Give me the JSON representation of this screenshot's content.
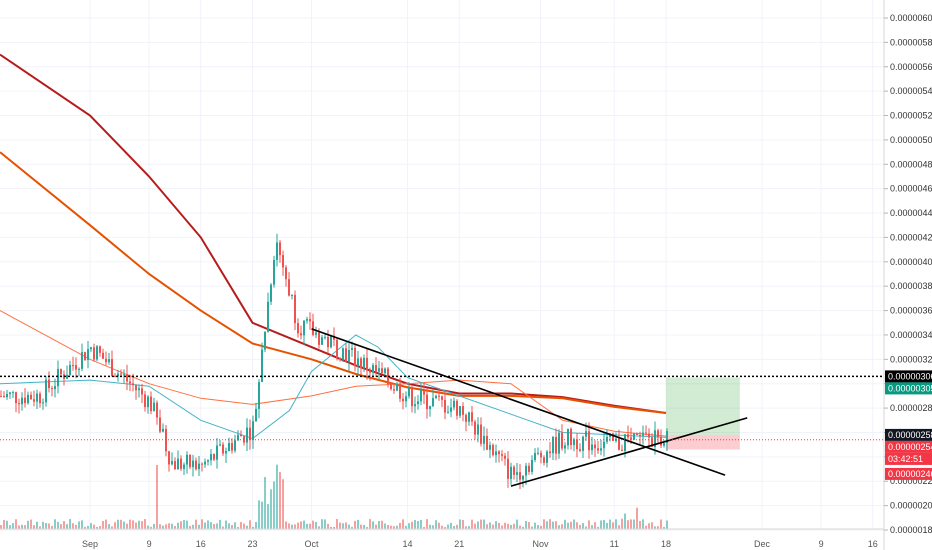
{
  "chart_data": {
    "type": "candlestick",
    "yticks": [
      "0.00000180",
      "0.00000200",
      "0.00000220",
      "0.00000240",
      "0.00000260",
      "0.00000280",
      "0.00000300",
      "0.00000320",
      "0.00000340",
      "0.00000360",
      "0.00000380",
      "0.00000400",
      "0.00000420",
      "0.00000440",
      "0.00000460",
      "0.00000480",
      "0.00000500",
      "0.00000520",
      "0.00000540",
      "0.00000560",
      "0.00000580",
      "0.00000600"
    ],
    "ylim": [
      1.8e-06,
      6e-06
    ],
    "xticks": [
      "Sep",
      "9",
      "16",
      "23",
      "Oct",
      "14",
      "21",
      "Nov",
      "11",
      "18",
      "Dec",
      "9",
      "16"
    ],
    "grid": true,
    "price_tags": [
      {
        "id": "level-high",
        "label": "0.00000306",
        "value": 3.06e-06,
        "color": "#000000"
      },
      {
        "id": "target",
        "label": "0.00000305",
        "value": 3.05e-06,
        "color": "#089981"
      },
      {
        "id": "last",
        "label": "0.00000258",
        "value": 2.58e-06,
        "color": "#131722"
      },
      {
        "id": "current",
        "label": "0.00000254",
        "value": 2.54e-06,
        "color": "#f23645"
      },
      {
        "id": "countdown",
        "label": "03:42:51",
        "value": 2.51e-06,
        "color": "#f23645"
      },
      {
        "id": "stop",
        "label": "0.00000246",
        "value": 2.46e-06,
        "color": "#f23645"
      }
    ],
    "series": [
      {
        "kind": "ma",
        "color": "#b71c1c",
        "points": [
          [
            "Aug 25",
            5.7e-06
          ],
          [
            "Sep 1",
            5.2e-06
          ],
          [
            "Sep 9",
            4.7e-06
          ],
          [
            "Sep 16",
            4.2e-06
          ],
          [
            "Sep 23",
            3.5e-06
          ],
          [
            "Oct 1",
            3.3e-06
          ],
          [
            "Oct 7",
            3.15e-06
          ],
          [
            "Oct 14",
            3e-06
          ],
          [
            "Oct 21",
            2.92e-06
          ],
          [
            "Oct 28",
            2.92e-06
          ],
          [
            "Nov 4",
            2.89e-06
          ],
          [
            "Nov 11",
            2.82e-06
          ],
          [
            "Nov 18",
            2.76e-06
          ]
        ]
      },
      {
        "kind": "ma",
        "color": "#e65100",
        "points": [
          [
            "Aug 25",
            4.9e-06
          ],
          [
            "Sep 1",
            4.3e-06
          ],
          [
            "Sep 9",
            3.9e-06
          ],
          [
            "Sep 16",
            3.6e-06
          ],
          [
            "Sep 23",
            3.33e-06
          ],
          [
            "Oct 1",
            3.2e-06
          ],
          [
            "Oct 7",
            3.08e-06
          ],
          [
            "Oct 14",
            2.97e-06
          ],
          [
            "Oct 21",
            2.9e-06
          ],
          [
            "Oct 28",
            2.9e-06
          ],
          [
            "Nov 4",
            2.88e-06
          ],
          [
            "Nov 11",
            2.81e-06
          ],
          [
            "Nov 18",
            2.76e-06
          ]
        ]
      },
      {
        "kind": "ma",
        "color": "#ff7043",
        "points": [
          [
            "Aug 25",
            3.6e-06
          ],
          [
            "Sep 1",
            3.2e-06
          ],
          [
            "Sep 9",
            3e-06
          ],
          [
            "Sep 16",
            2.88e-06
          ],
          [
            "Sep 23",
            2.83e-06
          ],
          [
            "Oct 1",
            2.9e-06
          ],
          [
            "Oct 7",
            2.98e-06
          ],
          [
            "Oct 14",
            3e-06
          ],
          [
            "Oct 21",
            3.03e-06
          ],
          [
            "Oct 28",
            3e-06
          ],
          [
            "Nov 4",
            2.7e-06
          ],
          [
            "Nov 11",
            2.61e-06
          ],
          [
            "Nov 18",
            2.57e-06
          ]
        ]
      },
      {
        "kind": "ma",
        "color": "#46b3c8",
        "points": [
          [
            "Aug 25",
            3e-06
          ],
          [
            "Sep 1",
            3.03e-06
          ],
          [
            "Sep 9",
            2.98e-06
          ],
          [
            "Sep 16",
            2.7e-06
          ],
          [
            "Sep 23",
            2.55e-06
          ],
          [
            "Sep 28",
            2.78e-06
          ],
          [
            "Oct 1",
            3.1e-06
          ],
          [
            "Oct 7",
            3.4e-06
          ],
          [
            "Oct 10",
            3.3e-06
          ],
          [
            "Oct 14",
            3.05e-06
          ],
          [
            "Oct 21",
            2.9e-06
          ],
          [
            "Oct 28",
            2.75e-06
          ],
          [
            "Nov 4",
            2.6e-06
          ],
          [
            "Nov 11",
            2.58e-06
          ],
          [
            "Nov 18",
            2.56e-06
          ]
        ]
      }
    ],
    "trendlines": [
      {
        "from": [
          "Oct 1",
          3.45e-06
        ],
        "to": [
          "Nov 26",
          2.25e-06
        ],
        "color": "#000000"
      },
      {
        "from": [
          "Oct 28",
          2.16e-06
        ],
        "to": [
          "Nov 29",
          2.72e-06
        ],
        "color": "#000000"
      }
    ],
    "position": {
      "entry": 2.58e-06,
      "target": 3.05e-06,
      "stop": 2.46e-06,
      "from": "Nov 18",
      "to": "Nov 28"
    },
    "candles_summary": [
      {
        "date": "Aug 25",
        "close": 2.9e-06
      },
      {
        "date": "Sep 1",
        "close": 3.3e-06
      },
      {
        "date": "Sep 9",
        "close": 2.85e-06
      },
      {
        "date": "Sep 12",
        "close": 2.35e-06
      },
      {
        "date": "Sep 16",
        "close": 2.32e-06
      },
      {
        "date": "Sep 23",
        "close": 2.65e-06
      },
      {
        "date": "Sep 26",
        "close": 4.2e-06
      },
      {
        "date": "Sep 29",
        "close": 3.5e-06
      },
      {
        "date": "Oct 7",
        "close": 3.2e-06
      },
      {
        "date": "Oct 14",
        "close": 2.9e-06
      },
      {
        "date": "Oct 21",
        "close": 2.8e-06
      },
      {
        "date": "Oct 28",
        "close": 2.25e-06
      },
      {
        "date": "Nov 4",
        "close": 2.55e-06
      },
      {
        "date": "Nov 11",
        "close": 2.5e-06
      },
      {
        "date": "Nov 18",
        "close": 2.58e-06
      }
    ]
  }
}
